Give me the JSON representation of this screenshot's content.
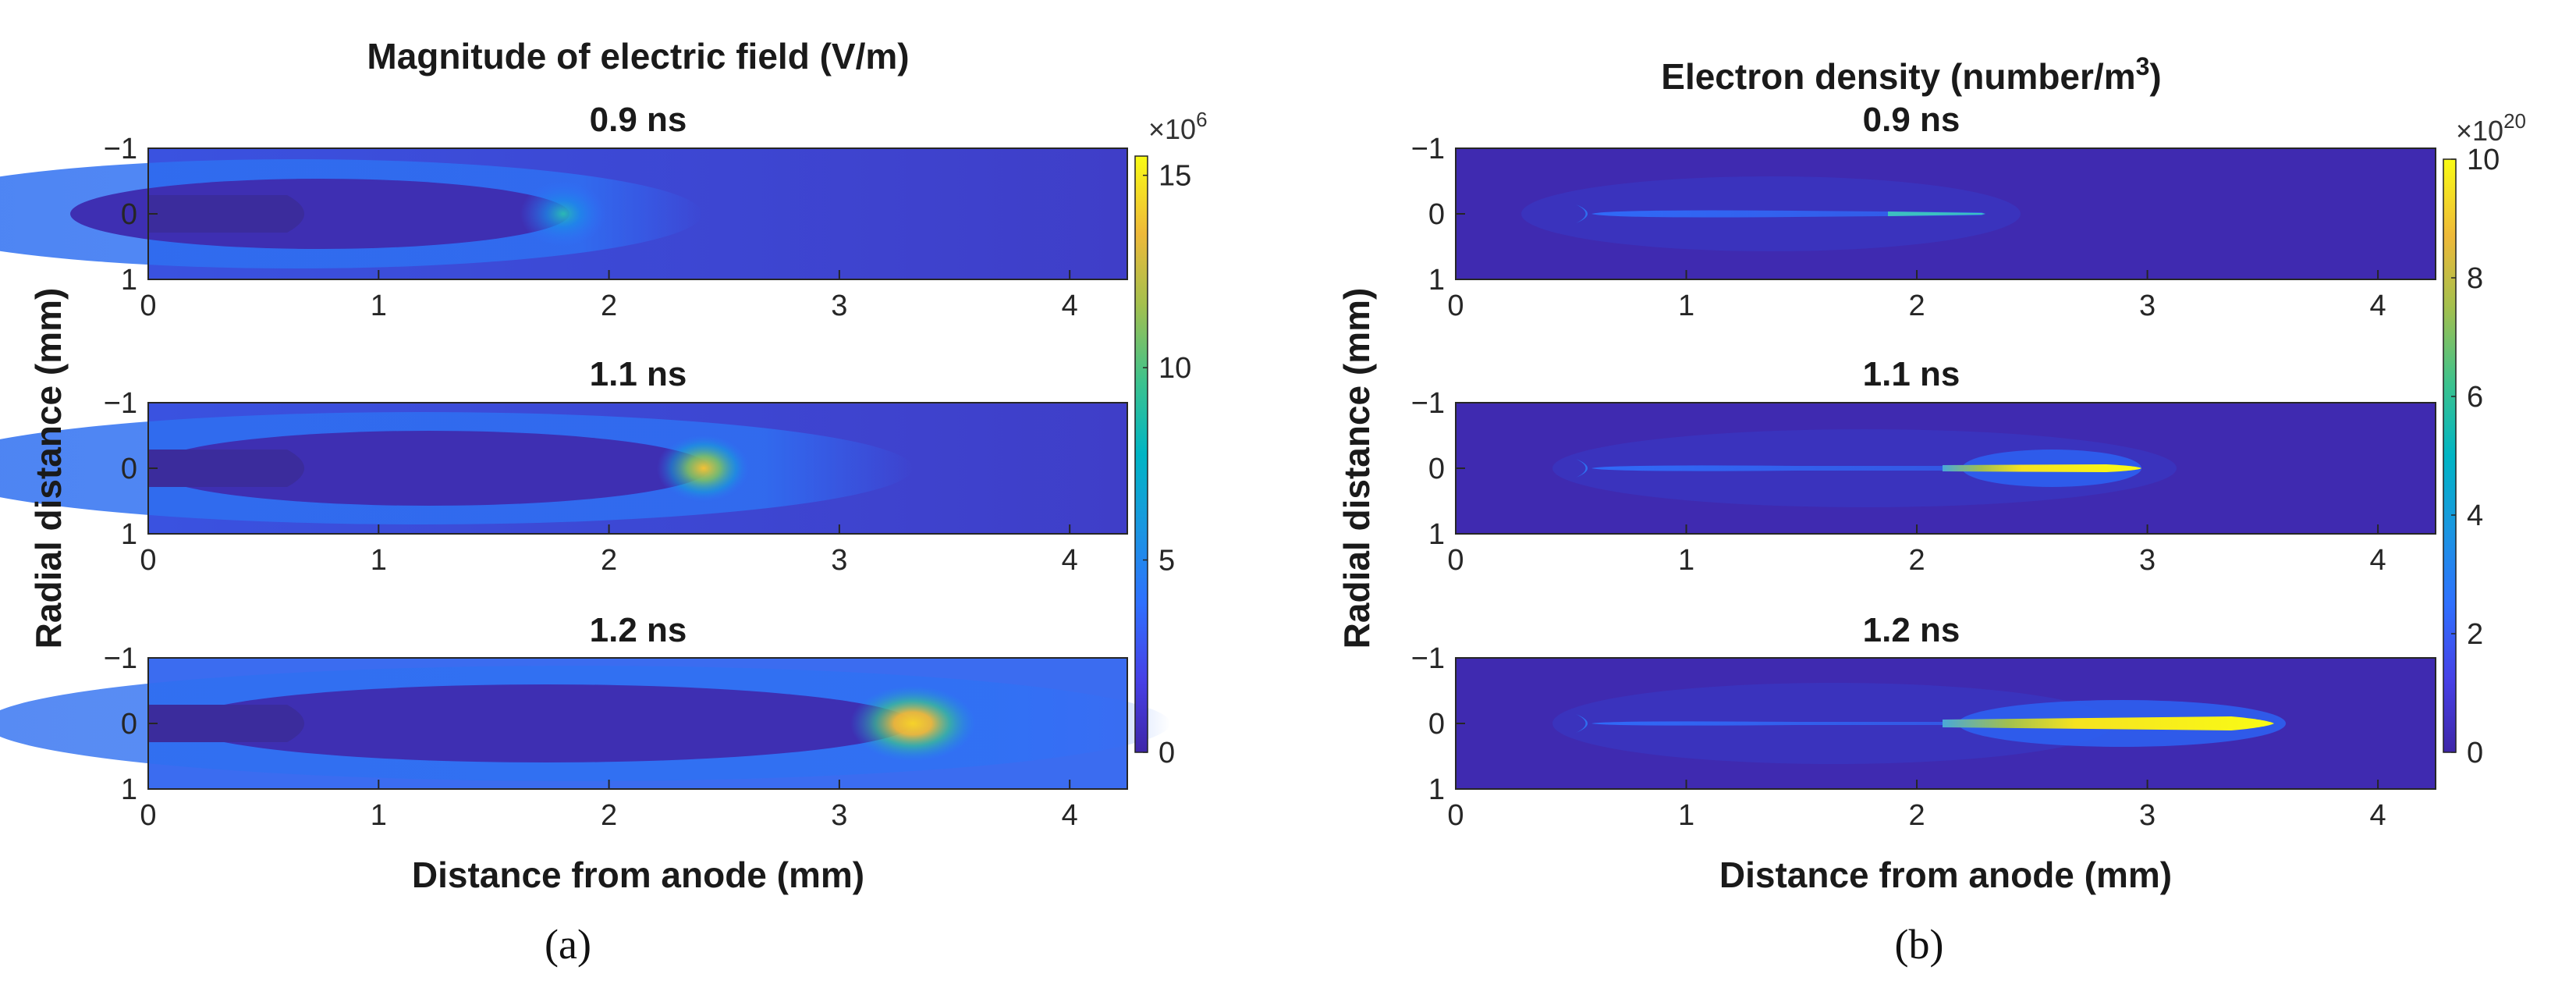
{
  "figure": {
    "panels": [
      {
        "caption": "(a)",
        "title": "Magnitude of electric field (V/m)",
        "ylabel": "Radial distance (mm)",
        "xlabel": "Distance from anode (mm)",
        "colorbar": {
          "multiplier": "×10",
          "exponent": "6",
          "ticks": [
            "0",
            "5",
            "10",
            "15"
          ],
          "range": [
            0,
            15.5
          ]
        }
      },
      {
        "caption": "(b)",
        "title": "Electron density (number/m",
        "title_sup": "3",
        "title_end": ")",
        "ylabel": "Radial distance (mm)",
        "xlabel": "Distance from anode (mm)",
        "colorbar": {
          "multiplier": "×10",
          "exponent": "20",
          "ticks": [
            "0",
            "2",
            "4",
            "6",
            "8",
            "10"
          ],
          "range": [
            0,
            10
          ]
        }
      }
    ],
    "subplot_titles": [
      "0.9 ns",
      "1.1 ns",
      "1.2 ns"
    ],
    "xticks": [
      "0",
      "1",
      "2",
      "3",
      "4"
    ],
    "yticks": [
      "−1",
      "0",
      "1"
    ]
  },
  "chart_data": [
    {
      "type": "heatmap",
      "title": "Magnitude of electric field (V/m)",
      "xlabel": "Distance from anode (mm)",
      "ylabel": "Radial distance (mm)",
      "xlim": [
        0,
        4.25
      ],
      "ylim": [
        -1,
        1
      ],
      "colormap": "parula",
      "color_range": [
        0,
        15500000
      ],
      "subplots": [
        {
          "title": "0.9 ns",
          "anode_tip_mm": 0.75,
          "front_mm": 1.8,
          "peak_value": 6000000,
          "background_value": 1500000
        },
        {
          "title": "1.1 ns",
          "anode_tip_mm": 0.75,
          "front_mm": 2.45,
          "peak_value": 10000000,
          "background_value": 1500000
        },
        {
          "title": "1.2 ns",
          "anode_tip_mm": 0.75,
          "front_mm": 3.4,
          "peak_value": 15000000,
          "background_value": 2500000
        }
      ]
    },
    {
      "type": "heatmap",
      "title": "Electron density (number/m3)",
      "xlabel": "Distance from anode (mm)",
      "ylabel": "Radial distance (mm)",
      "xlim": [
        0,
        4.25
      ],
      "ylim": [
        -1,
        1
      ],
      "colormap": "parula",
      "color_range": [
        0,
        1e+21
      ],
      "subplots": [
        {
          "title": "0.9 ns",
          "channel_start_mm": 0.75,
          "channel_end_mm": 2.3,
          "peak_value": 3e+20
        },
        {
          "title": "1.1 ns",
          "channel_start_mm": 0.75,
          "channel_end_mm": 2.9,
          "peak_value": 1e+21
        },
        {
          "title": "1.2 ns",
          "channel_start_mm": 0.75,
          "channel_end_mm": 3.75,
          "peak_value": 1e+21
        }
      ]
    }
  ]
}
